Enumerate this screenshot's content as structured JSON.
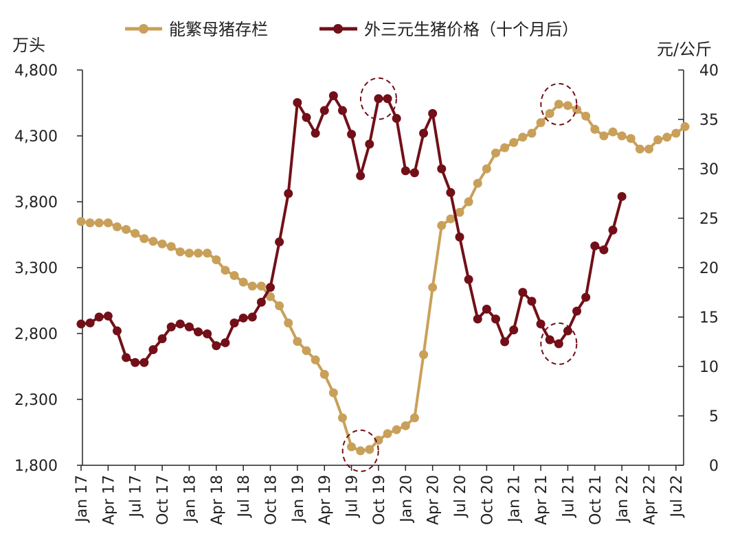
{
  "chart_data": {
    "type": "line",
    "legend_position": "top",
    "left_axis": {
      "unit": "万头",
      "ylim": [
        1800,
        4800
      ],
      "ticks": [
        "1,800",
        "2,300",
        "2,800",
        "3,300",
        "3,800",
        "4,300",
        "4,800"
      ],
      "tick_values": [
        1800,
        2300,
        2800,
        3300,
        3800,
        4300,
        4800
      ]
    },
    "right_axis": {
      "unit": "元/公斤",
      "ylim": [
        0,
        40
      ],
      "ticks": [
        "0",
        "5",
        "10",
        "15",
        "20",
        "25",
        "30",
        "35",
        "40"
      ],
      "tick_values": [
        0,
        5,
        10,
        15,
        20,
        25,
        30,
        35,
        40
      ]
    },
    "x_ticks": [
      {
        "index": 0,
        "label": "Jan 17"
      },
      {
        "index": 3,
        "label": "Apr 17"
      },
      {
        "index": 6,
        "label": "Jul 17"
      },
      {
        "index": 9,
        "label": "Oct 17"
      },
      {
        "index": 12,
        "label": "Jan 18"
      },
      {
        "index": 15,
        "label": "Apr 18"
      },
      {
        "index": 18,
        "label": "Jul 18"
      },
      {
        "index": 21,
        "label": "Oct 18"
      },
      {
        "index": 24,
        "label": "Jan 19"
      },
      {
        "index": 27,
        "label": "Apr 19"
      },
      {
        "index": 30,
        "label": "Jul 19"
      },
      {
        "index": 33,
        "label": "Oct 19"
      },
      {
        "index": 36,
        "label": "Jan 20"
      },
      {
        "index": 39,
        "label": "Apr 20"
      },
      {
        "index": 42,
        "label": "Jul 20"
      },
      {
        "index": 45,
        "label": "Oct 20"
      },
      {
        "index": 48,
        "label": "Jan 21"
      },
      {
        "index": 51,
        "label": "Apr 21"
      },
      {
        "index": 54,
        "label": "Jul 21"
      },
      {
        "index": 57,
        "label": "Oct 21"
      },
      {
        "index": 60,
        "label": "Jan 22"
      },
      {
        "index": 63,
        "label": "Apr 22"
      },
      {
        "index": 66,
        "label": "Jul 22"
      }
    ],
    "x_count": 68,
    "series": [
      {
        "name": "能繁母猪存栏",
        "axis": "left",
        "color": "#C9A05A",
        "values": [
          3650,
          3640,
          3640,
          3640,
          3610,
          3590,
          3560,
          3520,
          3500,
          3480,
          3460,
          3420,
          3410,
          3410,
          3410,
          3360,
          3280,
          3240,
          3190,
          3160,
          3160,
          3080,
          3010,
          2880,
          2740,
          2670,
          2600,
          2490,
          2350,
          2160,
          1940,
          1910,
          1920,
          1990,
          2040,
          2070,
          2100,
          2160,
          2640,
          3150,
          3620,
          3670,
          3720,
          3800,
          3940,
          4050,
          4170,
          4210,
          4250,
          4290,
          4320,
          4400,
          4470,
          4540,
          4530,
          4500,
          4450,
          4350,
          4300,
          4330,
          4300,
          4280,
          4200,
          4200,
          4270,
          4290,
          4320,
          4370
        ]
      },
      {
        "name": "外三元生猪价格（十个月后）",
        "axis": "right",
        "color": "#720F18",
        "values": [
          14.3,
          14.4,
          15.0,
          15.1,
          13.6,
          10.9,
          10.4,
          10.4,
          11.7,
          12.8,
          14.0,
          14.3,
          14.0,
          13.5,
          13.3,
          12.1,
          12.4,
          14.4,
          14.9,
          15.0,
          16.5,
          18.0,
          22.6,
          27.5,
          36.7,
          35.2,
          33.6,
          35.9,
          37.4,
          35.9,
          33.5,
          29.3,
          32.5,
          37.1,
          37.1,
          35.1,
          29.8,
          29.6,
          33.6,
          35.6,
          30.0,
          27.6,
          23.1,
          18.8,
          14.8,
          15.8,
          14.8,
          12.5,
          13.7,
          17.5,
          16.6,
          14.3,
          12.7,
          12.3,
          13.6,
          15.6,
          17.0,
          22.2,
          21.8,
          23.8,
          27.2
        ]
      }
    ],
    "highlights": [
      {
        "series": 1,
        "index": 33
      },
      {
        "series": 0,
        "index": 31
      },
      {
        "series": 0,
        "index": 53
      },
      {
        "series": 1,
        "index": 53
      }
    ]
  }
}
